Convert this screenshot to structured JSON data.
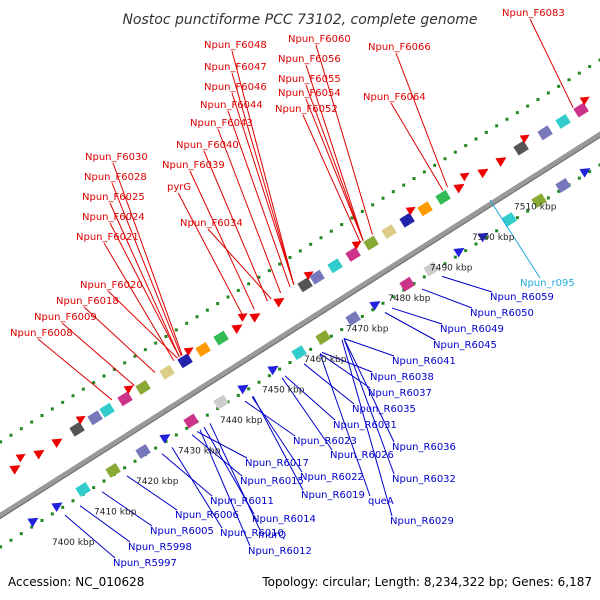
{
  "title": "Nostoc punctiforme PCC 73102, complete genome",
  "footer": {
    "accession": "Accession: NC_010628",
    "summary": "Topology: circular; Length: 8,234,322 bp; Genes: 6,187"
  },
  "colors": {
    "plus_strand_label": "#dd0000",
    "minus_strand_label": "#0000cc",
    "rna_label": "#22aadd",
    "backbone": "#999999",
    "tick_dots": "#228822"
  },
  "ticks": [
    "7400 kbp",
    "7410 kbp",
    "7420 kbp",
    "7430 kbp",
    "7440 kbp",
    "7450 kbp",
    "7460 kbp",
    "7470 kbp",
    "7480 kbp",
    "7490 kbp",
    "7500 kbp",
    "7510 kbp"
  ],
  "plus_labels": [
    "Npun_F6083",
    "Npun_F6060",
    "Npun_F6048",
    "Npun_F6066",
    "Npun_F6056",
    "Npun_F6047",
    "Npun_F6055",
    "Npun_F6046",
    "Npun_F6054",
    "Npun_F6064",
    "Npun_F6044",
    "Npun_F6052",
    "Npun_F6043",
    "Npun_F6040",
    "Npun_F6030",
    "Npun_F6039",
    "Npun_F6028",
    "pyrG",
    "Npun_F6025",
    "Npun_F6024",
    "Npun_F6034",
    "Npun_F6021",
    "Npun_F6020",
    "Npun_F6018",
    "Npun_F6009",
    "Npun_F6008"
  ],
  "rna_labels": [
    "Npun_r095"
  ],
  "minus_labels": [
    "Npun_R6059",
    "Npun_R6050",
    "Npun_R6049",
    "Npun_R6045",
    "Npun_R6041",
    "Npun_R6038",
    "Npun_R6037",
    "Npun_R6035",
    "Npun_R6031",
    "Npun_R6036",
    "Npun_R6023",
    "Npun_R6026",
    "Npun_R6017",
    "Npun_R6022",
    "Npun_R6032",
    "Npun_R6015",
    "Npun_R6019",
    "queA",
    "Npun_R6011",
    "Npun_R6014",
    "Npun_R6029",
    "Npun_R6006",
    "Npun_R6010",
    "murQ",
    "Npun_R6005",
    "Npun_R6012",
    "Npun_R5998",
    "Npun_R5997"
  ]
}
